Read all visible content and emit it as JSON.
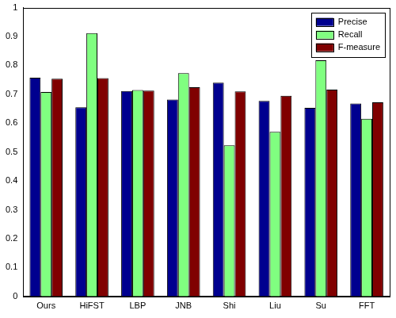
{
  "chart_data": {
    "type": "bar",
    "categories": [
      "Ours",
      "HiFST",
      "LBP",
      "JNB",
      "Shi",
      "Liu",
      "Su",
      "FFT"
    ],
    "series": [
      {
        "name": "Precise",
        "color": "#00008f",
        "values": [
          0.757,
          0.655,
          0.711,
          0.682,
          0.74,
          0.677,
          0.653,
          0.668
        ]
      },
      {
        "name": "Recall",
        "color": "#80ff80",
        "values": [
          0.708,
          0.912,
          0.715,
          0.773,
          0.523,
          0.57,
          0.818,
          0.615
        ]
      },
      {
        "name": "F-measure",
        "color": "#800000",
        "values": [
          0.754,
          0.756,
          0.713,
          0.724,
          0.71,
          0.695,
          0.716,
          0.672
        ]
      }
    ],
    "ylim": [
      0,
      1
    ],
    "yticks": [
      0,
      0.1,
      0.2,
      0.3,
      0.4,
      0.5,
      0.6,
      0.7,
      0.8,
      0.9,
      1
    ],
    "grid": false,
    "legend": "upper right"
  }
}
